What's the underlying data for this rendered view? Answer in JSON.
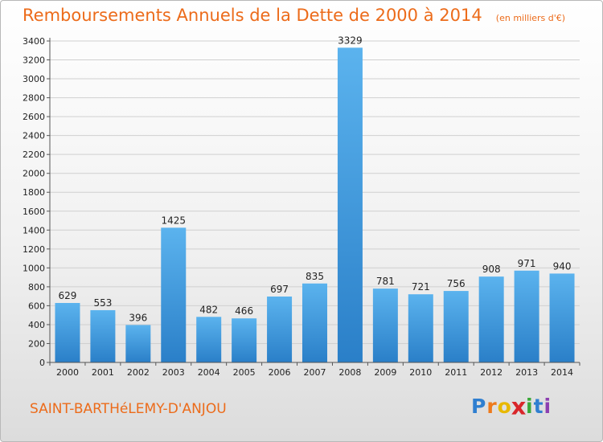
{
  "chart_data": {
    "type": "bar",
    "title": "Remboursements Annuels de la Dette de 2000 à 2014",
    "unit_note": "(en milliers d'€)",
    "categories": [
      "2000",
      "2001",
      "2002",
      "2003",
      "2004",
      "2005",
      "2006",
      "2007",
      "2008",
      "2009",
      "2010",
      "2011",
      "2012",
      "2013",
      "2014"
    ],
    "values": [
      629,
      553,
      396,
      1425,
      482,
      466,
      697,
      835,
      3329,
      781,
      721,
      756,
      908,
      971,
      940
    ],
    "ylim": [
      0,
      3400
    ],
    "yticks": [
      0,
      200,
      400,
      600,
      800,
      1000,
      1200,
      1400,
      1600,
      1800,
      2000,
      2200,
      2400,
      2600,
      2800,
      3000,
      3200,
      3400
    ],
    "grid": true,
    "bar_color": "#3d97dd"
  },
  "commune": "SAINT-BARTHéLEMY-D'ANJOU",
  "logo": {
    "letters": [
      "P",
      "r",
      "o",
      "x",
      "i",
      "t",
      "i"
    ],
    "colors": [
      "#2f7fd0",
      "#ee7a1c",
      "#e8b800",
      "#d9262a",
      "#3aa838",
      "#2f7fd0",
      "#8c3fb0"
    ]
  },
  "colors": {
    "accent": "#ec6b1a",
    "grid": "#d0d0d0"
  }
}
